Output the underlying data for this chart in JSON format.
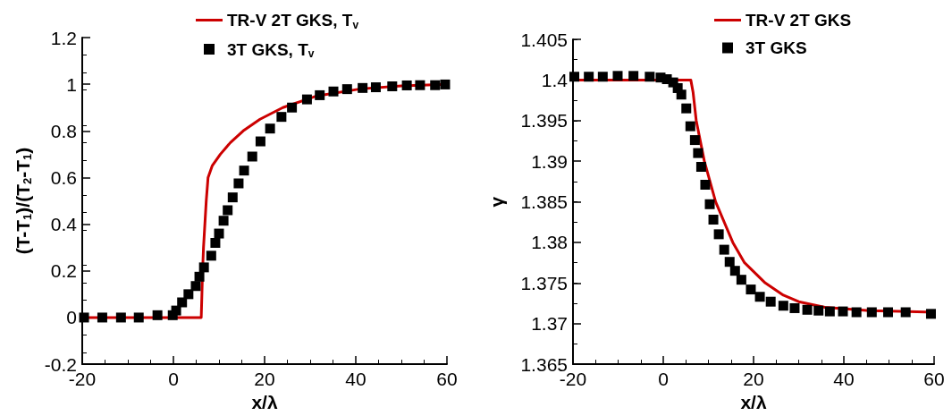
{
  "chart_data": [
    {
      "type": "line",
      "xlabel": "x/λ",
      "ylabel": "(T-T$_{1}$)/(T$_{2}$-T$_{1}$)",
      "xlim": [
        -20,
        60
      ],
      "xticks": [
        -20,
        0,
        20,
        40,
        60
      ],
      "ylim": [
        -0.2,
        1.2
      ],
      "yticks": [
        -0.2,
        0,
        0.2,
        0.4,
        0.6,
        0.8,
        1,
        1.2
      ],
      "legend": "top",
      "grid": false,
      "series": [
        {
          "name": "TR-V 2T GKS, T$_{v}$",
          "type": "line",
          "marker": "none",
          "color": "#cc0000",
          "x": [
            -20,
            6.1,
            6.4,
            6.6,
            6.9,
            7.2,
            7.6,
            8.5,
            10.3,
            12.5,
            15.3,
            19,
            24,
            31.5,
            41,
            50,
            60
          ],
          "values": [
            0,
            0,
            0.2,
            0.3,
            0.4,
            0.5,
            0.6,
            0.65,
            0.7,
            0.75,
            0.8,
            0.85,
            0.9,
            0.95,
            0.98,
            0.993,
            1
          ]
        },
        {
          "name": "3T GKS, T$_{v}$",
          "type": "scatter",
          "marker": "square",
          "color": "#000000",
          "x": [
            -19.6,
            -15.6,
            -11.5,
            -7.6,
            -3.5,
            -0.15,
            0.6,
            1.9,
            3.3,
            4.9,
            5.7,
            6.7,
            8.3,
            9.2,
            10.0,
            11.0,
            11.9,
            13.0,
            14.3,
            15.5,
            17.3,
            19.1,
            21.2,
            23.7,
            26.0,
            29.3,
            32.1,
            35.1,
            38.1,
            41.5,
            44.4,
            48.0,
            51.2,
            54.1,
            57.4,
            59.6
          ],
          "values": [
            0,
            0,
            0,
            0,
            0.01,
            0.01,
            0.03,
            0.065,
            0.1,
            0.135,
            0.175,
            0.215,
            0.265,
            0.32,
            0.36,
            0.415,
            0.46,
            0.515,
            0.575,
            0.63,
            0.69,
            0.755,
            0.81,
            0.86,
            0.9,
            0.935,
            0.953,
            0.969,
            0.979,
            0.984,
            0.987,
            0.991,
            0.995,
            0.996,
            0.996,
            0.999
          ]
        }
      ]
    },
    {
      "type": "line",
      "xlabel": "x/λ",
      "ylabel": "γ",
      "xlim": [
        -20,
        60
      ],
      "xticks": [
        -20,
        0,
        20,
        40,
        60
      ],
      "ylim": [
        1.365,
        1.405
      ],
      "yticks": [
        1.365,
        1.37,
        1.375,
        1.38,
        1.385,
        1.39,
        1.395,
        1.4,
        1.405
      ],
      "legend": "top",
      "grid": false,
      "series": [
        {
          "name": "TR-V 2T GKS",
          "type": "line",
          "marker": "none",
          "color": "#cc0000",
          "x": [
            -20,
            6.1,
            6.6,
            7.3,
            9.1,
            11.6,
            15.4,
            18,
            22.6,
            26.6,
            30,
            35.8,
            45.7,
            60
          ],
          "values": [
            1.4,
            1.4,
            1.3985,
            1.395,
            1.39,
            1.385,
            1.38,
            1.3775,
            1.375,
            1.3735,
            1.3727,
            1.372,
            1.3716,
            1.3714
          ]
        },
        {
          "name": "3T GKS",
          "type": "scatter",
          "marker": "square",
          "color": "#000000",
          "x": [
            -19.7,
            -16.5,
            -13.4,
            -10.1,
            -6.6,
            -3.0,
            -0.6,
            0.8,
            2.2,
            3.2,
            4.0,
            5.1,
            6.0,
            7.0,
            7.7,
            8.4,
            9.3,
            10.3,
            11.1,
            12.3,
            13.5,
            14.7,
            15.9,
            17.3,
            19.4,
            21.4,
            23.8,
            26.6,
            29.1,
            31.9,
            34.4,
            36.9,
            39.8,
            42.8,
            46.2,
            49.8,
            53.7,
            59.3
          ],
          "values": [
            1.4004,
            1.4004,
            1.4004,
            1.4005,
            1.4005,
            1.4004,
            1.4003,
            1.4001,
            1.3997,
            1.399,
            1.3982,
            1.3965,
            1.3943,
            1.3926,
            1.391,
            1.3893,
            1.3871,
            1.3847,
            1.3828,
            1.381,
            1.3791,
            1.3776,
            1.3765,
            1.3754,
            1.3742,
            1.3733,
            1.3727,
            1.3722,
            1.3719,
            1.3717,
            1.3716,
            1.3715,
            1.3715,
            1.3714,
            1.3714,
            1.3714,
            1.3714,
            1.3712
          ]
        }
      ]
    }
  ]
}
